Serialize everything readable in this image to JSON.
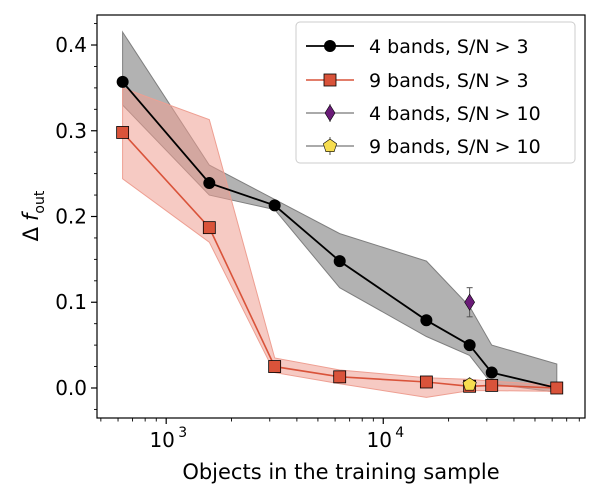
{
  "chart_data": {
    "type": "line",
    "x_scale": "log",
    "xlabel": "Objects in the training sample",
    "ylabel": "Δ f_out",
    "ylabel_main": "Δ",
    "ylabel_var": "f",
    "ylabel_sub": "out",
    "xlim": [
      480,
      85000
    ],
    "ylim": [
      -0.035,
      0.435
    ],
    "x_ticks": [
      {
        "value": 1000,
        "base": "10",
        "exp": "3"
      },
      {
        "value": 10000,
        "base": "10",
        "exp": "4"
      }
    ],
    "y_ticks": [
      {
        "value": 0.0,
        "label": "0.0"
      },
      {
        "value": 0.1,
        "label": "0.1"
      },
      {
        "value": 0.2,
        "label": "0.2"
      },
      {
        "value": 0.3,
        "label": "0.3"
      },
      {
        "value": 0.4,
        "label": "0.4"
      }
    ],
    "series": [
      {
        "name": "4 bands, S/N > 3",
        "legend_main": "4 bands, S/N",
        "legend_tail": "> 3",
        "color": "#000000",
        "marker": "circle",
        "band_color": "#7f7f7f",
        "x": [
          630,
          1580,
          3160,
          6300,
          15800,
          25000,
          31600,
          63000
        ],
        "y": [
          0.357,
          0.239,
          0.213,
          0.148,
          0.079,
          0.05,
          0.018,
          0.0
        ],
        "band_upper": [
          0.415,
          0.26,
          0.22,
          0.18,
          0.148,
          0.095,
          0.05,
          0.028
        ],
        "band_lower": [
          0.33,
          0.225,
          0.208,
          0.117,
          0.06,
          0.038,
          0.005,
          -0.005
        ]
      },
      {
        "name": "9 bands, S/N > 3",
        "legend_main": "9 bands, S/N",
        "legend_tail": "> 3",
        "color": "#d9533a",
        "marker": "square",
        "band_color": "#ee9f92",
        "x": [
          630,
          1580,
          3160,
          6300,
          15800,
          25000,
          31600,
          63000
        ],
        "y": [
          0.298,
          0.187,
          0.025,
          0.013,
          0.007,
          0.002,
          0.003,
          0.0
        ],
        "band_upper": [
          0.35,
          0.313,
          0.035,
          0.021,
          0.012,
          0.01,
          0.008,
          0.003
        ],
        "band_lower": [
          0.244,
          0.17,
          0.018,
          0.005,
          -0.011,
          -0.003,
          -0.003,
          -0.004
        ]
      },
      {
        "name": "4 bands, S/N > 10",
        "legend_main": "4 bands, S/N",
        "legend_tail": "> 10",
        "color": "#6a1b78",
        "marker": "diamond",
        "x": [
          25000
        ],
        "y": [
          0.1
        ],
        "err": [
          0.017
        ]
      },
      {
        "name": "9 bands, S/N > 10",
        "legend_main": "9 bands, S/N",
        "legend_tail": "> 10",
        "color": "#f6dd50",
        "marker": "pentagon",
        "x": [
          25000
        ],
        "y": [
          0.004
        ],
        "err": [
          0.004
        ]
      }
    ],
    "legend_position": "top-right"
  }
}
